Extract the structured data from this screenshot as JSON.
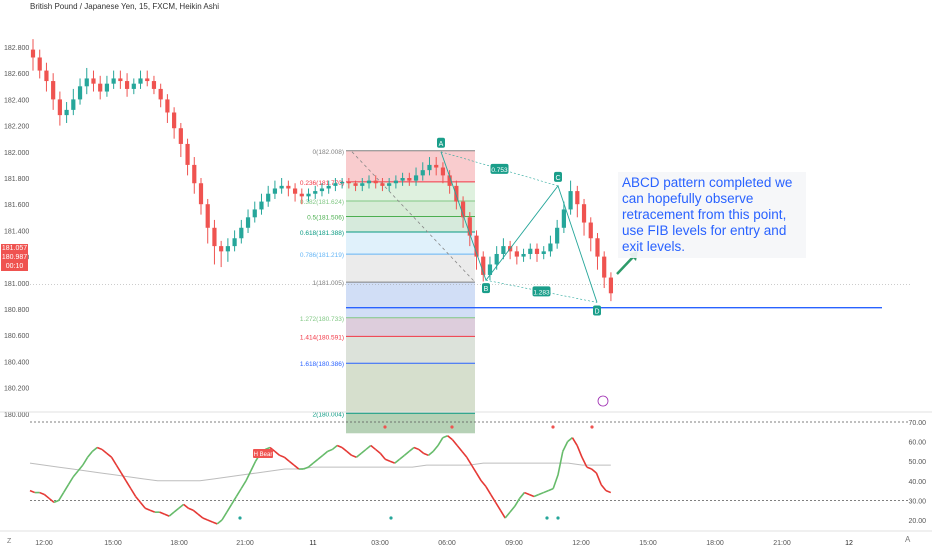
{
  "header": {
    "title": "British Pound / Japanese Yen, 15, FXCM, Heikin Ashi"
  },
  "price_tags": {
    "top": "181.057",
    "mid": "180.987",
    "timer": "00:10"
  },
  "annotation": {
    "text": "ABCD pattern completed we can hopefully observe retracement from this point, use FIB levels for entry and exit levels."
  },
  "footer": {
    "z_label": "Z",
    "a_label": "A"
  },
  "colors": {
    "up": "#26a69a",
    "down": "#ef5350",
    "accent": "#2962ff",
    "osc_up": "#66bb6a",
    "osc_down": "#e53935",
    "osc_ma": "#bdbdbd"
  },
  "chart_data": {
    "type": "candlestick",
    "title": "British Pound / Japanese Yen, 15, FXCM, Heikin Ashi",
    "y_ticks": [
      "182.800",
      "182.600",
      "182.400",
      "182.200",
      "182.000",
      "181.800",
      "181.600",
      "181.400",
      "181.200",
      "181.000",
      "180.800",
      "180.600",
      "180.400",
      "180.200",
      "180.000"
    ],
    "x_ticks": [
      "12:00",
      "15:00",
      "18:00",
      "21:00",
      "11",
      "03:00",
      "06:00",
      "09:00",
      "12:00",
      "15:00",
      "18:00",
      "21:00",
      "12"
    ],
    "candles": [
      [
        182.78,
        182.72,
        182.86,
        182.62
      ],
      [
        182.72,
        182.62,
        182.78,
        182.56
      ],
      [
        182.62,
        182.54,
        182.68,
        182.46
      ],
      [
        182.54,
        182.4,
        182.6,
        182.32
      ],
      [
        182.4,
        182.28,
        182.46,
        182.2
      ],
      [
        182.28,
        182.32,
        182.38,
        182.22
      ],
      [
        182.32,
        182.4,
        182.48,
        182.28
      ],
      [
        182.4,
        182.5,
        182.56,
        182.36
      ],
      [
        182.5,
        182.56,
        182.64,
        182.44
      ],
      [
        182.56,
        182.52,
        182.62,
        182.46
      ],
      [
        182.52,
        182.46,
        182.58,
        182.4
      ],
      [
        182.46,
        182.52,
        182.58,
        182.42
      ],
      [
        182.52,
        182.56,
        182.62,
        182.48
      ],
      [
        182.56,
        182.54,
        182.62,
        182.48
      ],
      [
        182.54,
        182.48,
        182.6,
        182.42
      ],
      [
        182.48,
        182.52,
        182.56,
        182.44
      ],
      [
        182.52,
        182.56,
        182.62,
        182.48
      ],
      [
        182.56,
        182.54,
        182.62,
        182.5
      ],
      [
        182.54,
        182.48,
        182.58,
        182.44
      ],
      [
        182.48,
        182.4,
        182.52,
        182.34
      ],
      [
        182.4,
        182.3,
        182.44,
        182.22
      ],
      [
        182.3,
        182.18,
        182.34,
        182.1
      ],
      [
        182.18,
        182.06,
        182.22,
        181.96
      ],
      [
        182.06,
        181.9,
        182.1,
        181.82
      ],
      [
        181.9,
        181.76,
        181.96,
        181.68
      ],
      [
        181.76,
        181.6,
        181.8,
        181.52
      ],
      [
        181.6,
        181.42,
        181.64,
        181.3
      ],
      [
        181.42,
        181.28,
        181.48,
        181.14
      ],
      [
        181.28,
        181.24,
        181.32,
        181.12
      ],
      [
        181.24,
        181.28,
        181.34,
        181.16
      ],
      [
        181.28,
        181.34,
        181.4,
        181.24
      ],
      [
        181.34,
        181.42,
        181.48,
        181.3
      ],
      [
        181.42,
        181.5,
        181.56,
        181.38
      ],
      [
        181.5,
        181.56,
        181.62,
        181.46
      ],
      [
        181.56,
        181.62,
        181.68,
        181.52
      ],
      [
        181.62,
        181.68,
        181.74,
        181.58
      ],
      [
        181.68,
        181.72,
        181.78,
        181.64
      ],
      [
        181.72,
        181.74,
        181.8,
        181.68
      ],
      [
        181.74,
        181.72,
        181.78,
        181.66
      ],
      [
        181.72,
        181.68,
        181.76,
        181.62
      ],
      [
        181.68,
        181.66,
        181.72,
        181.6
      ],
      [
        181.66,
        181.68,
        181.72,
        181.62
      ],
      [
        181.68,
        181.7,
        181.74,
        181.64
      ],
      [
        181.7,
        181.72,
        181.76,
        181.66
      ],
      [
        181.72,
        181.74,
        181.78,
        181.68
      ],
      [
        181.74,
        181.76,
        181.8,
        181.7
      ],
      [
        181.76,
        181.77,
        181.8,
        181.72
      ],
      [
        181.77,
        181.76,
        181.8,
        181.72
      ],
      [
        181.76,
        181.74,
        181.78,
        181.7
      ],
      [
        181.74,
        181.76,
        181.8,
        181.7
      ],
      [
        181.76,
        181.78,
        181.82,
        181.72
      ],
      [
        181.78,
        181.76,
        181.82,
        181.72
      ],
      [
        181.76,
        181.74,
        181.8,
        181.7
      ],
      [
        181.74,
        181.76,
        181.8,
        181.7
      ],
      [
        181.76,
        181.78,
        181.82,
        181.72
      ],
      [
        181.78,
        181.8,
        181.84,
        181.74
      ],
      [
        181.8,
        181.78,
        181.84,
        181.74
      ],
      [
        181.78,
        181.82,
        181.88,
        181.74
      ],
      [
        181.82,
        181.86,
        181.92,
        181.78
      ],
      [
        181.86,
        181.9,
        181.96,
        181.82
      ],
      [
        181.9,
        181.88,
        181.96,
        181.82
      ],
      [
        181.88,
        181.82,
        181.92,
        181.76
      ],
      [
        181.82,
        181.74,
        181.86,
        181.68
      ],
      [
        181.74,
        181.62,
        181.78,
        181.56
      ],
      [
        181.62,
        181.5,
        181.66,
        181.42
      ],
      [
        181.5,
        181.36,
        181.54,
        181.28
      ],
      [
        181.36,
        181.2,
        181.4,
        181.1
      ],
      [
        181.2,
        181.06,
        181.24,
        181.01
      ],
      [
        181.06,
        181.14,
        181.2,
        181.02
      ],
      [
        181.14,
        181.22,
        181.28,
        181.1
      ],
      [
        181.22,
        181.28,
        181.34,
        181.18
      ],
      [
        181.28,
        181.24,
        181.32,
        181.18
      ],
      [
        181.24,
        181.2,
        181.28,
        181.14
      ],
      [
        181.2,
        181.22,
        181.26,
        181.16
      ],
      [
        181.22,
        181.26,
        181.3,
        181.18
      ],
      [
        181.26,
        181.22,
        181.3,
        181.16
      ],
      [
        181.22,
        181.24,
        181.28,
        181.18
      ],
      [
        181.24,
        181.3,
        181.36,
        181.2
      ],
      [
        181.3,
        181.42,
        181.48,
        181.26
      ],
      [
        181.42,
        181.56,
        181.62,
        181.38
      ],
      [
        181.56,
        181.7,
        181.78,
        181.52
      ],
      [
        181.7,
        181.6,
        181.74,
        181.5
      ],
      [
        181.6,
        181.46,
        181.64,
        181.36
      ],
      [
        181.46,
        181.34,
        181.5,
        181.24
      ],
      [
        181.34,
        181.2,
        181.38,
        181.1
      ],
      [
        181.2,
        181.04,
        181.24,
        180.96
      ],
      [
        181.04,
        180.92,
        181.08,
        180.86
      ]
    ],
    "fib_levels": [
      {
        "ratio": "0",
        "label": "0(182.008)",
        "value": 182.008,
        "color": "#808080"
      },
      {
        "ratio": "0.236",
        "label": "0.236(181.770)",
        "value": 181.77,
        "color": "#f23645"
      },
      {
        "ratio": "0.382",
        "label": "0.382(181.624)",
        "value": 181.624,
        "color": "#81c784"
      },
      {
        "ratio": "0.5",
        "label": "0.5(181.506)",
        "value": 181.506,
        "color": "#4caf50"
      },
      {
        "ratio": "0.618",
        "label": "0.618(181.388)",
        "value": 181.388,
        "color": "#089981"
      },
      {
        "ratio": "0.786",
        "label": "0.786(181.219)",
        "value": 181.219,
        "color": "#64b5f6"
      },
      {
        "ratio": "1",
        "label": "1(181.005)",
        "value": 181.005,
        "color": "#808080"
      },
      {
        "ratio": "1.272",
        "label": "1.272(180.733)",
        "value": 180.733,
        "color": "#81c784"
      },
      {
        "ratio": "1.414",
        "label": "1.414(180.591)",
        "value": 180.591,
        "color": "#f23645"
      },
      {
        "ratio": "1.618",
        "label": "1.618(180.386)",
        "value": 180.386,
        "color": "#2962ff"
      },
      {
        "ratio": "2",
        "label": "2(180.004)",
        "value": 180.004,
        "color": "#089981"
      }
    ],
    "abcd": {
      "points": [
        {
          "label": "A",
          "value": 182.0
        },
        {
          "label": "B",
          "value": 181.02
        },
        {
          "label": "C",
          "value": 181.74
        },
        {
          "label": "D",
          "value": 180.85
        }
      ],
      "ratios": [
        "0.753",
        "1.283"
      ]
    },
    "horizontal_line": 180.81,
    "current_price": 180.987,
    "oscillator": {
      "y_ticks": [
        "70.00",
        "60.00",
        "50.00",
        "40.00",
        "30.00",
        "20.00"
      ],
      "upper": 70,
      "lower": 30,
      "label": "H Bear",
      "values": [
        35,
        34,
        34,
        33,
        31,
        29,
        30,
        34,
        38,
        42,
        45,
        48,
        52,
        55,
        57,
        56,
        54,
        52,
        48,
        44,
        40,
        36,
        32,
        29,
        26,
        25,
        24,
        24,
        23,
        22,
        24,
        26,
        28,
        26,
        25,
        23,
        21,
        20,
        19,
        18,
        20,
        24,
        28,
        32,
        36,
        40,
        45,
        50,
        54,
        56,
        57,
        55,
        53,
        52,
        50,
        48,
        46,
        46,
        47,
        49,
        51,
        53,
        55,
        56,
        58,
        57,
        55,
        53,
        52,
        54,
        56,
        58,
        56,
        54,
        51,
        50,
        49,
        51,
        53,
        55,
        57,
        56,
        54,
        53,
        55,
        58,
        62,
        63,
        61,
        58,
        55,
        52,
        48,
        44,
        40,
        37,
        33,
        29,
        25,
        21,
        24,
        27,
        31,
        34,
        33,
        32,
        33,
        34,
        35,
        36,
        43,
        55,
        60,
        62,
        58,
        52,
        47,
        46,
        44,
        38,
        35,
        34
      ],
      "ma": [
        49,
        48,
        47,
        46,
        45,
        44,
        43,
        42,
        41,
        40,
        40,
        40,
        40,
        41,
        42,
        43,
        44,
        45,
        46,
        46,
        47,
        47,
        47,
        47,
        47,
        47,
        47,
        47,
        48,
        48,
        48,
        48,
        49,
        49,
        49,
        49,
        49,
        49,
        49,
        48,
        48,
        48
      ]
    }
  }
}
